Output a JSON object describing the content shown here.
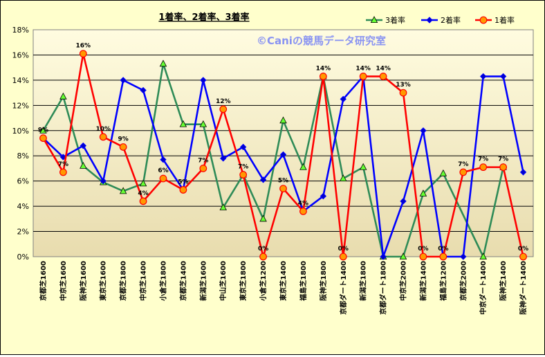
{
  "chart_data": {
    "type": "line",
    "title": "1着率、2着率、3着率",
    "watermark": "©Caniの競馬データ研究室",
    "categories": [
      "京都芝1600",
      "中京芝1600",
      "阪神芝1600",
      "東京芝1600",
      "京都芝1800",
      "中京芝1400",
      "小倉芝1800",
      "京都芝1400",
      "新潟芝1600",
      "中山芝1600",
      "東京芝1800",
      "小倉芝1200",
      "東京芝1400",
      "福島芝1800",
      "阪神芝1800",
      "京都ダート1400",
      "新潟芝1800",
      "京都ダート1800",
      "中京芝2000",
      "新潟芝1400",
      "福島芝1200",
      "京都芝2000",
      "中京ダート1400",
      "阪神芝1400",
      "阪神ダート1400"
    ],
    "ylim": [
      0,
      18
    ],
    "yticks": [
      0,
      2,
      4,
      6,
      8,
      10,
      12,
      14,
      16,
      18
    ],
    "ytick_labels": [
      "0%",
      "2%",
      "4%",
      "6%",
      "8%",
      "10%",
      "12%",
      "14%",
      "16%",
      "18%"
    ],
    "legend_position": "top-right",
    "grid": true,
    "series": [
      {
        "name": "3着率",
        "color": "#2e8b57",
        "marker": "triangle",
        "marker_fill": "#66ff33",
        "values": [
          10.0,
          12.7,
          7.2,
          5.9,
          5.2,
          5.8,
          15.3,
          10.5,
          10.5,
          3.9,
          6.5,
          3.0,
          10.8,
          7.1,
          14.3,
          6.2,
          7.1,
          0,
          0,
          5.0,
          6.6,
          null,
          0,
          7.1,
          null
        ]
      },
      {
        "name": "2着率",
        "color": "#0000ff",
        "marker": "diamond",
        "marker_fill": "#0000cc",
        "values": [
          9.4,
          7.9,
          8.8,
          6.0,
          14.0,
          13.2,
          7.7,
          5.3,
          14.0,
          7.8,
          8.7,
          6.1,
          8.1,
          3.6,
          4.8,
          12.5,
          14.3,
          0,
          4.4,
          10.0,
          0,
          0,
          14.3,
          14.3,
          6.7
        ]
      },
      {
        "name": "1着率",
        "color": "#ff0000",
        "marker": "circle",
        "marker_fill": "#ff9900",
        "values": [
          9.4,
          6.7,
          16.1,
          9.5,
          8.7,
          4.4,
          6.2,
          5.3,
          7.0,
          11.7,
          6.5,
          0,
          5.4,
          3.6,
          14.3,
          0,
          14.3,
          14.3,
          13.0,
          0,
          0,
          6.7,
          7.1,
          7.1,
          0
        ]
      }
    ],
    "data_labels": [
      "9%",
      "7%",
      "16%",
      "10%",
      "9%",
      "4%",
      "6%",
      "5%",
      "7%",
      "12%",
      "7%",
      "0%",
      "5%",
      "4%",
      "14%",
      "0%",
      "14%",
      "14%",
      "13%",
      "0%",
      "0%",
      "7%",
      "7%",
      "7%",
      "0%"
    ]
  }
}
